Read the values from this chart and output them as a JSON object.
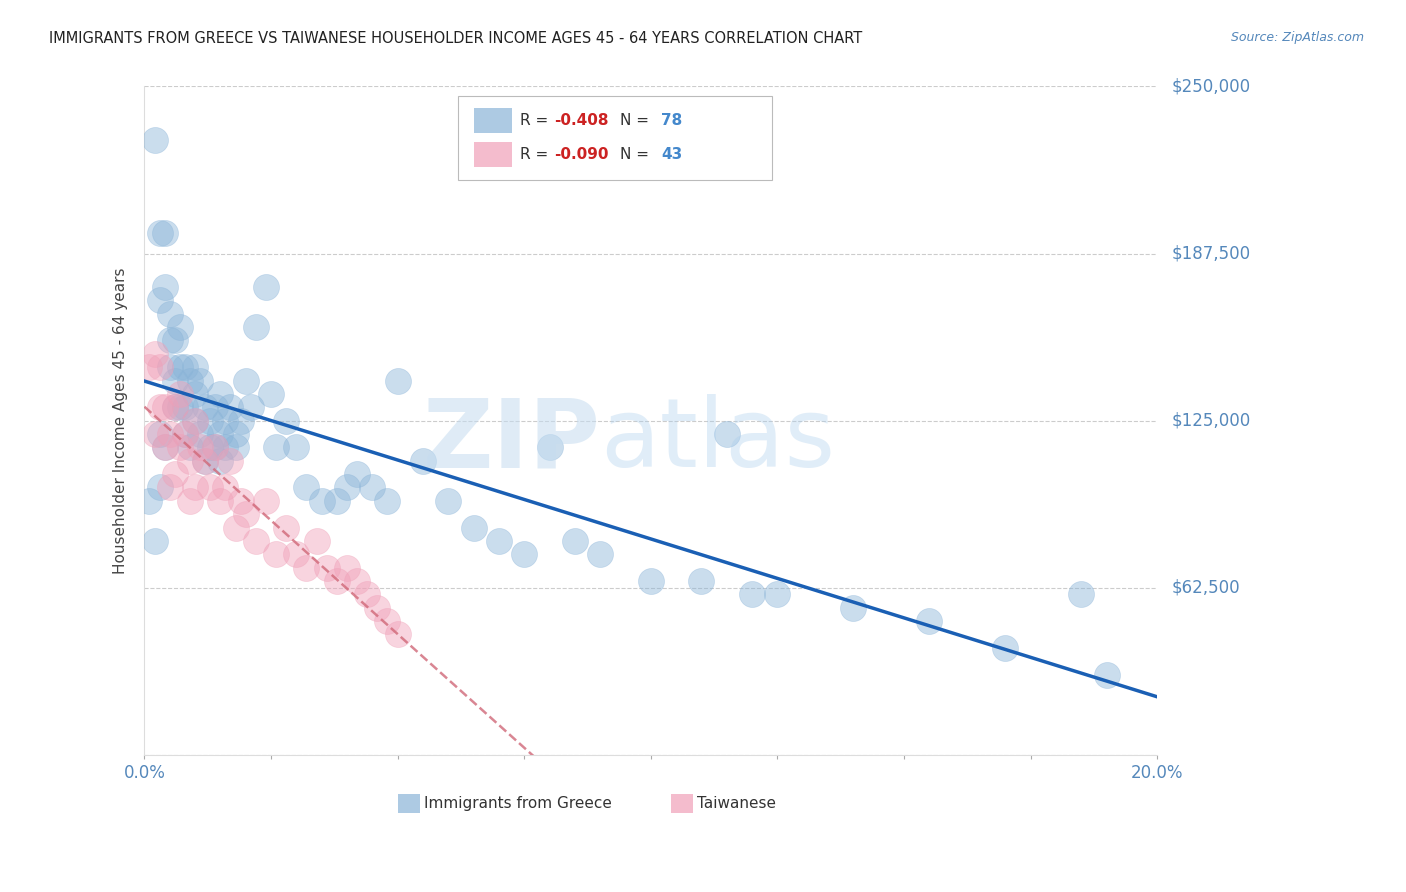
{
  "title": "IMMIGRANTS FROM GREECE VS TAIWANESE HOUSEHOLDER INCOME AGES 45 - 64 YEARS CORRELATION CHART",
  "source_text": "Source: ZipAtlas.com",
  "ylabel": "Householder Income Ages 45 - 64 years",
  "xlim": [
    0,
    0.2
  ],
  "ylim": [
    0,
    250000
  ],
  "yticks": [
    0,
    62500,
    125000,
    187500,
    250000
  ],
  "ytick_labels": [
    "",
    "$62,500",
    "$125,000",
    "$187,500",
    "$250,000"
  ],
  "xtick_positions": [
    0.0,
    0.025,
    0.05,
    0.075,
    0.1,
    0.125,
    0.15,
    0.175,
    0.2
  ],
  "xtick_labels": [
    "0.0%",
    "",
    "",
    "",
    "",
    "",
    "",
    "",
    "20.0%"
  ],
  "greece_R": -0.408,
  "greece_N": 78,
  "taiwan_R": -0.09,
  "taiwan_N": 43,
  "greece_color": "#8ab4d8",
  "taiwan_color": "#f0a0b8",
  "greece_line_color": "#1a5fb4",
  "taiwan_line_color": "#d06878",
  "title_color": "#222222",
  "axis_label_color": "#5588bb",
  "grid_color": "#cccccc",
  "background_color": "#ffffff",
  "red_text_color": "#cc2222",
  "blue_text_color": "#4488cc",
  "greece_x": [
    0.002,
    0.003,
    0.003,
    0.004,
    0.004,
    0.005,
    0.005,
    0.005,
    0.006,
    0.006,
    0.007,
    0.007,
    0.007,
    0.008,
    0.008,
    0.008,
    0.009,
    0.009,
    0.01,
    0.01,
    0.01,
    0.011,
    0.011,
    0.012,
    0.012,
    0.013,
    0.013,
    0.014,
    0.014,
    0.015,
    0.015,
    0.015,
    0.016,
    0.016,
    0.017,
    0.018,
    0.018,
    0.019,
    0.02,
    0.021,
    0.022,
    0.024,
    0.025,
    0.026,
    0.028,
    0.03,
    0.032,
    0.035,
    0.038,
    0.04,
    0.042,
    0.045,
    0.048,
    0.05,
    0.055,
    0.06,
    0.065,
    0.07,
    0.075,
    0.08,
    0.085,
    0.09,
    0.1,
    0.11,
    0.115,
    0.12,
    0.125,
    0.14,
    0.155,
    0.17,
    0.185,
    0.19,
    0.001,
    0.002,
    0.003,
    0.003,
    0.004,
    0.006
  ],
  "greece_y": [
    230000,
    195000,
    170000,
    195000,
    175000,
    155000,
    145000,
    165000,
    140000,
    155000,
    145000,
    160000,
    130000,
    120000,
    145000,
    130000,
    140000,
    115000,
    135000,
    125000,
    145000,
    140000,
    120000,
    130000,
    110000,
    125000,
    115000,
    130000,
    115000,
    120000,
    135000,
    110000,
    125000,
    115000,
    130000,
    120000,
    115000,
    125000,
    140000,
    130000,
    160000,
    175000,
    135000,
    115000,
    125000,
    115000,
    100000,
    95000,
    95000,
    100000,
    105000,
    100000,
    95000,
    140000,
    110000,
    95000,
    85000,
    80000,
    75000,
    115000,
    80000,
    75000,
    65000,
    65000,
    120000,
    60000,
    60000,
    55000,
    50000,
    40000,
    60000,
    30000,
    95000,
    80000,
    120000,
    100000,
    115000,
    130000
  ],
  "taiwan_x": [
    0.001,
    0.002,
    0.002,
    0.003,
    0.003,
    0.004,
    0.004,
    0.005,
    0.005,
    0.006,
    0.006,
    0.007,
    0.007,
    0.008,
    0.009,
    0.009,
    0.01,
    0.01,
    0.011,
    0.012,
    0.013,
    0.014,
    0.015,
    0.016,
    0.017,
    0.018,
    0.019,
    0.02,
    0.022,
    0.024,
    0.026,
    0.028,
    0.03,
    0.032,
    0.034,
    0.036,
    0.038,
    0.04,
    0.042,
    0.044,
    0.046,
    0.048,
    0.05
  ],
  "taiwan_y": [
    145000,
    150000,
    120000,
    145000,
    130000,
    130000,
    115000,
    120000,
    100000,
    130000,
    105000,
    135000,
    115000,
    120000,
    110000,
    95000,
    125000,
    100000,
    115000,
    110000,
    100000,
    115000,
    95000,
    100000,
    110000,
    85000,
    95000,
    90000,
    80000,
    95000,
    75000,
    85000,
    75000,
    70000,
    80000,
    70000,
    65000,
    70000,
    65000,
    60000,
    55000,
    50000,
    45000
  ]
}
